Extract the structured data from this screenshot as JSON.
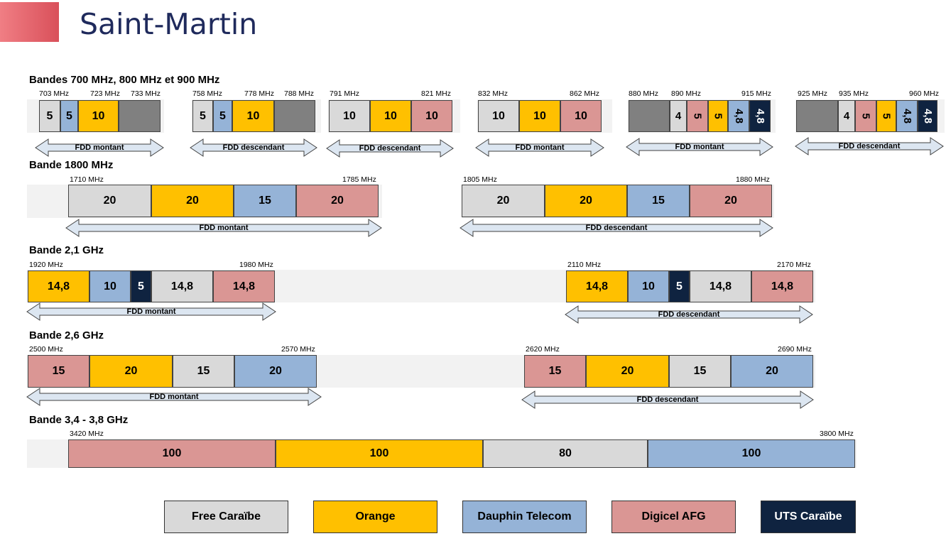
{
  "title": "Saint-Martin",
  "operators": {
    "free": {
      "name": "Free Caraïbe",
      "color": "#d9d9d9",
      "text": "#000000"
    },
    "orange": {
      "name": "Orange",
      "color": "#ffc000",
      "text": "#000000"
    },
    "dauphin": {
      "name": "Dauphin Telecom",
      "color": "#95b3d7",
      "text": "#000000"
    },
    "digicel": {
      "name": "Digicel AFG",
      "color": "#da9694",
      "text": "#000000"
    },
    "uts": {
      "name": "UTS Caraïbe",
      "color": "#0f2340",
      "text": "#ffffff"
    },
    "unassigned": {
      "color": "#808080"
    }
  },
  "legend": [
    "free",
    "orange",
    "dauphin",
    "digicel",
    "uts"
  ],
  "bands": [
    {
      "title": "Bandes 700 MHz, 800 MHz et 900 MHz",
      "blocks": [
        {
          "freqs": [
            "703 MHz",
            "723 MHz",
            "733 MHz"
          ],
          "segments": [
            {
              "op": "free",
              "label": "5"
            },
            {
              "op": "dauphin",
              "label": "5"
            },
            {
              "op": "orange",
              "label": "10"
            },
            {
              "op": "unassigned",
              "label": ""
            }
          ],
          "duplex": "FDD montant"
        },
        {
          "freqs": [
            "758 MHz",
            "778 MHz",
            "788 MHz"
          ],
          "segments": [
            {
              "op": "free",
              "label": "5"
            },
            {
              "op": "dauphin",
              "label": "5"
            },
            {
              "op": "orange",
              "label": "10"
            },
            {
              "op": "unassigned",
              "label": ""
            }
          ],
          "duplex": "FDD descendant"
        },
        {
          "freqs": [
            "791 MHz",
            "821 MHz"
          ],
          "segments": [
            {
              "op": "free",
              "label": "10"
            },
            {
              "op": "orange",
              "label": "10"
            },
            {
              "op": "digicel",
              "label": "10"
            }
          ],
          "duplex": "FDD descendant"
        },
        {
          "freqs": [
            "832 MHz",
            "862 MHz"
          ],
          "segments": [
            {
              "op": "free",
              "label": "10"
            },
            {
              "op": "orange",
              "label": "10"
            },
            {
              "op": "digicel",
              "label": "10"
            }
          ],
          "duplex": "FDD montant"
        },
        {
          "freqs": [
            "880 MHz",
            "890 MHz",
            "915 MHz"
          ],
          "segments": [
            {
              "op": "unassigned",
              "label": ""
            },
            {
              "op": "free",
              "label": "4"
            },
            {
              "op": "digicel",
              "label": "5"
            },
            {
              "op": "orange",
              "label": "5"
            },
            {
              "op": "dauphin",
              "label": "4,8"
            },
            {
              "op": "uts",
              "label": "4,8"
            }
          ],
          "duplex": "FDD montant"
        },
        {
          "freqs": [
            "925 MHz",
            "935 MHz",
            "960 MHz"
          ],
          "segments": [
            {
              "op": "unassigned",
              "label": ""
            },
            {
              "op": "free",
              "label": "4"
            },
            {
              "op": "digicel",
              "label": "5"
            },
            {
              "op": "orange",
              "label": "5"
            },
            {
              "op": "dauphin",
              "label": "4,8"
            },
            {
              "op": "uts",
              "label": "4,8"
            }
          ],
          "duplex": "FDD descendant"
        }
      ]
    },
    {
      "title": "Bande 1800 MHz",
      "blocks": [
        {
          "freqs": [
            "1710 MHz",
            "1785 MHz"
          ],
          "segments": [
            {
              "op": "free",
              "label": "20"
            },
            {
              "op": "orange",
              "label": "20"
            },
            {
              "op": "dauphin",
              "label": "15"
            },
            {
              "op": "digicel",
              "label": "20"
            }
          ],
          "duplex": "FDD montant"
        },
        {
          "freqs": [
            "1805 MHz",
            "1880 MHz"
          ],
          "segments": [
            {
              "op": "free",
              "label": "20"
            },
            {
              "op": "orange",
              "label": "20"
            },
            {
              "op": "dauphin",
              "label": "15"
            },
            {
              "op": "digicel",
              "label": "20"
            }
          ],
          "duplex": "FDD descendant"
        }
      ]
    },
    {
      "title": "Bande 2,1 GHz",
      "blocks": [
        {
          "freqs": [
            "1920 MHz",
            "1980 MHz"
          ],
          "segments": [
            {
              "op": "orange",
              "label": "14,8"
            },
            {
              "op": "dauphin",
              "label": "10"
            },
            {
              "op": "uts",
              "label": "5"
            },
            {
              "op": "free",
              "label": "14,8"
            },
            {
              "op": "digicel",
              "label": "14,8"
            }
          ],
          "duplex": "FDD montant"
        },
        {
          "freqs": [
            "2110 MHz",
            "2170 MHz"
          ],
          "segments": [
            {
              "op": "orange",
              "label": "14,8"
            },
            {
              "op": "dauphin",
              "label": "10"
            },
            {
              "op": "uts",
              "label": "5"
            },
            {
              "op": "free",
              "label": "14,8"
            },
            {
              "op": "digicel",
              "label": "14,8"
            }
          ],
          "duplex": "FDD descendant"
        }
      ]
    },
    {
      "title": "Bande 2,6 GHz",
      "blocks": [
        {
          "freqs": [
            "2500 MHz",
            "2570 MHz"
          ],
          "segments": [
            {
              "op": "digicel",
              "label": "15"
            },
            {
              "op": "orange",
              "label": "20"
            },
            {
              "op": "free",
              "label": "15"
            },
            {
              "op": "dauphin",
              "label": "20"
            }
          ],
          "duplex": "FDD montant"
        },
        {
          "freqs": [
            "2620 MHz",
            "2690 MHz"
          ],
          "segments": [
            {
              "op": "digicel",
              "label": "15"
            },
            {
              "op": "orange",
              "label": "20"
            },
            {
              "op": "free",
              "label": "15"
            },
            {
              "op": "dauphin",
              "label": "20"
            }
          ],
          "duplex": "FDD descendant"
        }
      ]
    },
    {
      "title": "Bande 3,4 - 3,8 GHz",
      "blocks": [
        {
          "freqs": [
            "3420 MHz",
            "3800 MHz"
          ],
          "segments": [
            {
              "op": "digicel",
              "label": "100"
            },
            {
              "op": "orange",
              "label": "100"
            },
            {
              "op": "free",
              "label": "80"
            },
            {
              "op": "dauphin",
              "label": "100"
            }
          ],
          "duplex": ""
        }
      ]
    }
  ]
}
